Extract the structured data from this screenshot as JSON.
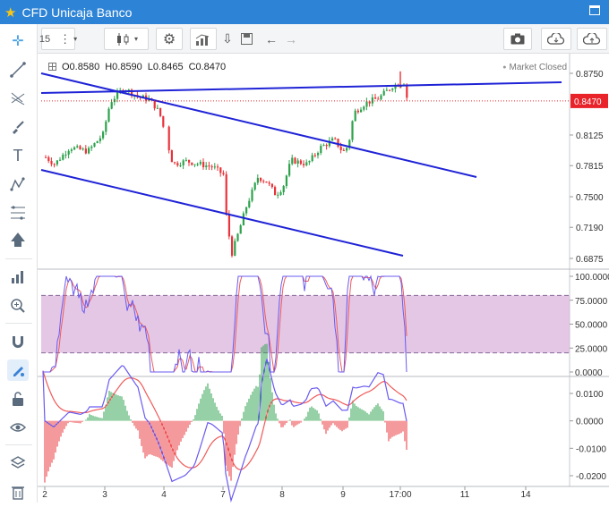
{
  "window": {
    "title": "CFD Unicaja Banco",
    "star_icon": "star-icon",
    "maximize_icon": "maximize-icon"
  },
  "toolbar": {
    "interval": "15",
    "icons": [
      "more-vert-icon",
      "candlestick-icon",
      "gear-icon",
      "indicators-icon",
      "download-icon",
      "save-icon",
      "undo-icon",
      "redo-icon",
      "camera-icon",
      "cloud-download-icon",
      "cloud-upload-icon"
    ]
  },
  "sidebar": {
    "icons": [
      "crosshair-icon",
      "trend-line-icon",
      "fork-icon",
      "brush-icon",
      "text-icon",
      "pattern-icon",
      "fib-icon",
      "arrow-up-icon",
      "measure-icon",
      "zoom-icon",
      "magnet-icon",
      "drawing-mode-icon",
      "lock-icon",
      "eye-icon",
      "layers-icon",
      "trash-icon"
    ]
  },
  "legend": {
    "open": "O0.8580",
    "high": "H0.8590",
    "low": "L0.8465",
    "close": "C0.8470",
    "status": "Market Closed"
  },
  "price_axis": {
    "ticks": [
      "0.6875",
      "0.7190",
      "0.7500",
      "0.7815",
      "0.8125",
      "0.8470",
      "0.8750"
    ],
    "current_price": "0.8470",
    "current_color": "#e8242a"
  },
  "stoch_axis": {
    "ticks": [
      "100.0000",
      "75.0000",
      "50.0000",
      "25.0000",
      "0.0000"
    ]
  },
  "macd_axis": {
    "ticks": [
      "0.0100",
      "0.0000",
      "-0.0100",
      "-0.0200"
    ]
  },
  "time_axis": {
    "ticks": [
      "2",
      "3",
      "4",
      "7",
      "8",
      "9",
      "17:00",
      "11",
      "14"
    ]
  },
  "colors": {
    "up": "#2ea24d",
    "down": "#e8343a",
    "trendline": "#1f23d6",
    "stoch_band": "#d9b4dc",
    "fast": "#6a5bf0",
    "slow": "#f05a5a"
  }
}
